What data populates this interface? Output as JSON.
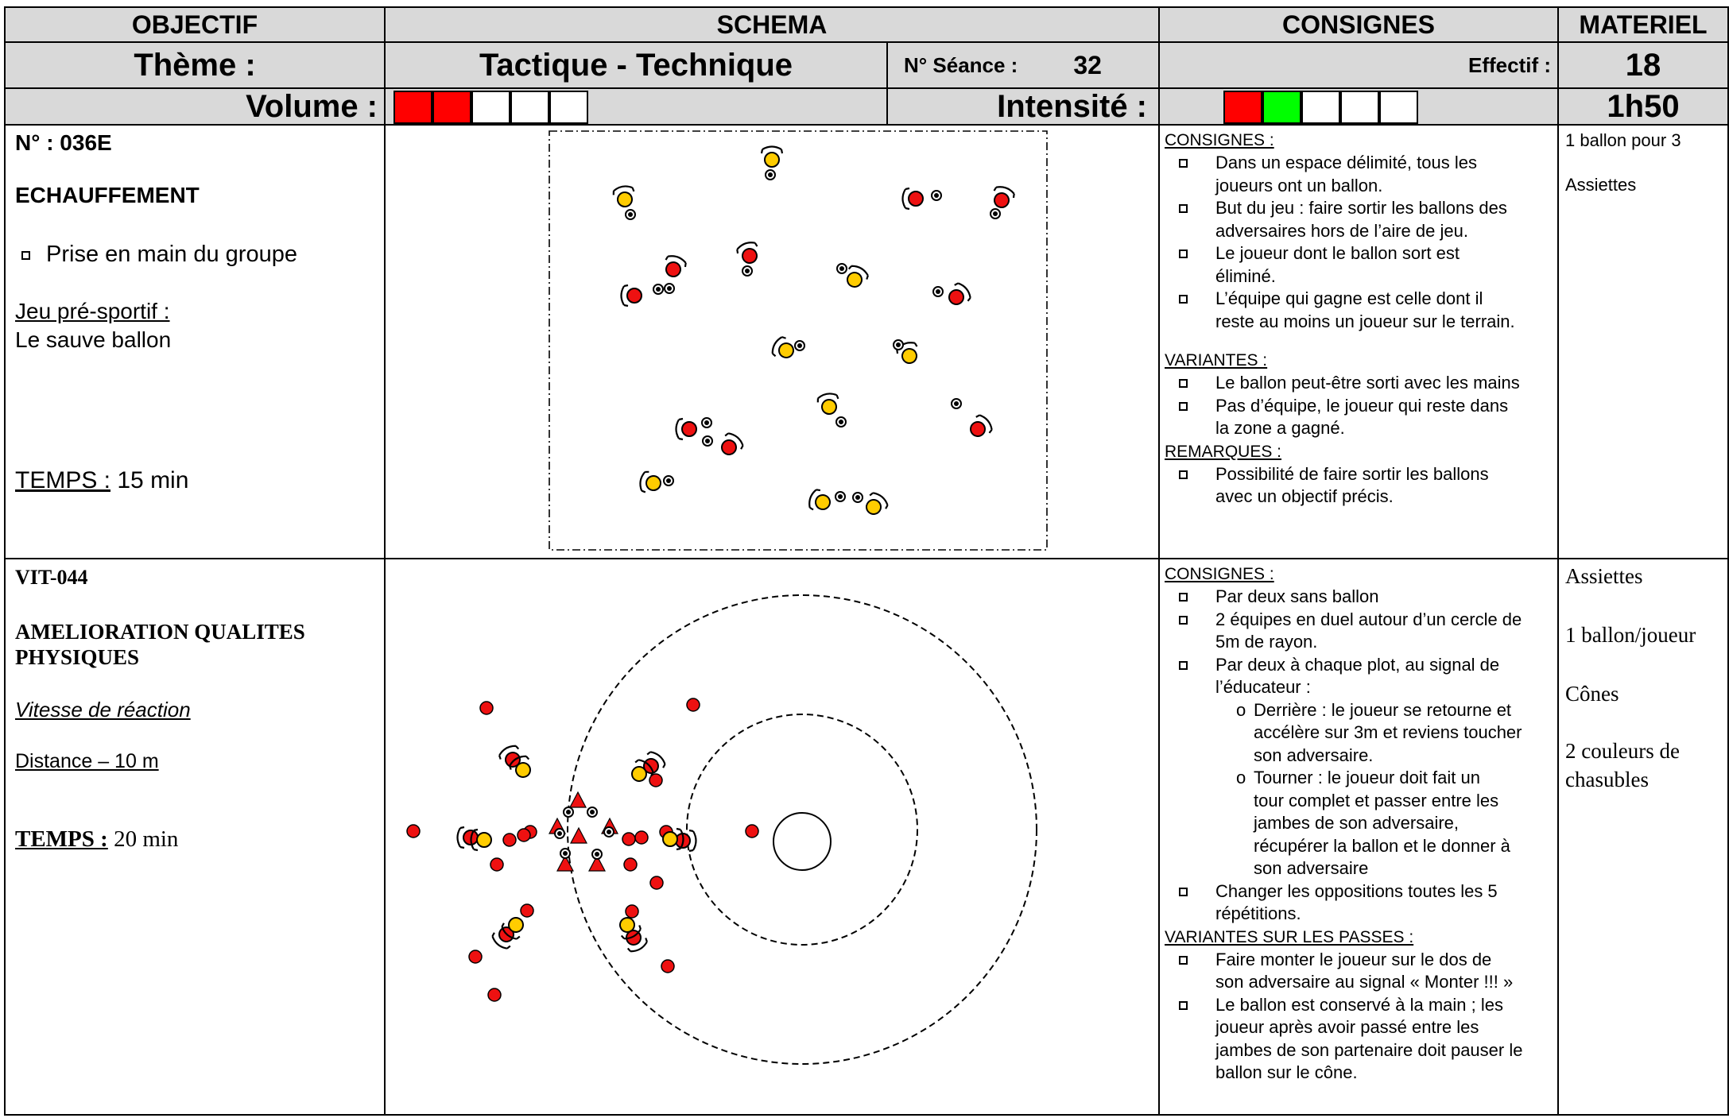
{
  "header": {
    "objectif": "OBJECTIF",
    "schema": "SCHEMA",
    "consignes": "CONSIGNES",
    "materiel": "MATERIEL"
  },
  "theme_row": {
    "theme_label": "Thème :",
    "theme_value": "Tactique - Technique",
    "seance_label": "N° Séance :",
    "seance_value": "32",
    "effectif_label": "Effectif :",
    "effectif_value": "18"
  },
  "volume_row": {
    "volume_label": "Volume :",
    "volume_level": 2,
    "volume_boxes": 5,
    "intensite_label": "Intensité :",
    "intensite_boxes": [
      "red",
      "green",
      "white",
      "white",
      "white"
    ],
    "duration": "1h50",
    "colors": {
      "red": "#ff0000",
      "green": "#00ff00",
      "header_bg": "#d9d9d9"
    }
  },
  "exercise1": {
    "code": "N° : 036E",
    "title": "ECHAUFFEMENT",
    "bullet": "Prise en main du groupe",
    "jeu_label": "Jeu pré-sportif :",
    "jeu_name": "Le sauve ballon",
    "temps_label": "TEMPS :",
    "temps_value": "15 min",
    "consignes_title": "CONSIGNES :",
    "consignes": [
      [
        "Dans un espace délimité, tous les",
        "joueurs ont un ballon."
      ],
      [
        "But du jeu : faire sortir les ballons des",
        "adversaires hors de l’aire de jeu."
      ],
      [
        "Le joueur dont le ballon sort est",
        "éliminé."
      ],
      [
        "L’équipe qui gagne est celle dont il",
        "reste au moins un joueur sur le terrain."
      ]
    ],
    "variantes_title": "VARIANTES :",
    "variantes": [
      [
        "Le ballon peut-être sorti avec les mains"
      ],
      [
        "Pas d’équipe, le joueur qui reste dans",
        "la zone a gagné."
      ]
    ],
    "remarques_title": "REMARQUES :",
    "remarques": [
      [
        "Possibilité de faire sortir les ballons",
        "avec un objectif précis."
      ]
    ],
    "materiel": [
      "1 ballon pour 3",
      "Assiettes"
    ]
  },
  "exercise2": {
    "code": "VIT-044",
    "title_line1": "AMELIORATION QUALITES",
    "title_line2": "PHYSIQUES",
    "subtitle": "Vitesse de réaction",
    "distance": "Distance – 10 m",
    "temps_label": "TEMPS :",
    "temps_value": "20 min",
    "consignes_title": "CONSIGNES :",
    "consignes_a": [
      [
        "Par deux sans ballon"
      ],
      [
        "2 équipes en duel autour d’un cercle de",
        "5m de rayon."
      ],
      [
        "Par deux à chaque plot, au signal de",
        "l’éducateur :"
      ]
    ],
    "sub_items": [
      [
        "Derrière : le joueur se retourne et",
        "accélère sur 3m et reviens toucher",
        "son adversaire."
      ],
      [
        "Tourner : le joueur doit fait un",
        "tour complet et passer entre les",
        "jambes de son adversaire,",
        "récupérer la ballon et le donner à",
        "son adversaire"
      ]
    ],
    "consignes_b": [
      [
        "Changer les oppositions toutes les 5",
        "répétitions."
      ]
    ],
    "variantes_title": "VARIANTES SUR LES PASSES :",
    "variantes": [
      [
        "Faire monter le joueur sur le dos de",
        "son adversaire au signal « Monter !!! »"
      ],
      [
        "Le ballon est conservé à la main ; les",
        "joueur après avoir passé entre les",
        "jambes de son partenaire doit pauser le",
        "ballon sur le cône."
      ]
    ],
    "materiel": [
      "Assiettes",
      "1 ballon/joueur",
      "Cônes",
      "2 couleurs de",
      "chasubles"
    ]
  }
}
